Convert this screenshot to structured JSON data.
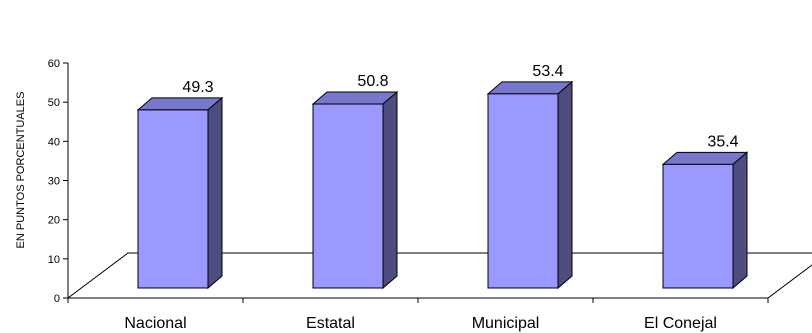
{
  "chart_data": {
    "type": "bar",
    "style": "3d-column",
    "categories": [
      "Nacional",
      "Estatal",
      "Municipal",
      "El Conejal"
    ],
    "values": [
      49.3,
      50.8,
      53.4,
      35.4
    ],
    "data_labels": [
      "49.3",
      "50.8",
      "53.4",
      "35.4"
    ],
    "ylabel": "EN PUNTOS  PORCENTUALES",
    "xlabel": "",
    "ylim": [
      0,
      60
    ],
    "yticks": [
      "0",
      "10",
      "20",
      "30",
      "40",
      "50",
      "60"
    ],
    "grid": false,
    "legend": "none",
    "colors": {
      "bar_front": "#9999ff",
      "bar_top": "#7777cc",
      "bar_side": "#4d4d80",
      "bar_outline": "#000000",
      "axis": "#000000",
      "floor": "#ffffff"
    }
  }
}
